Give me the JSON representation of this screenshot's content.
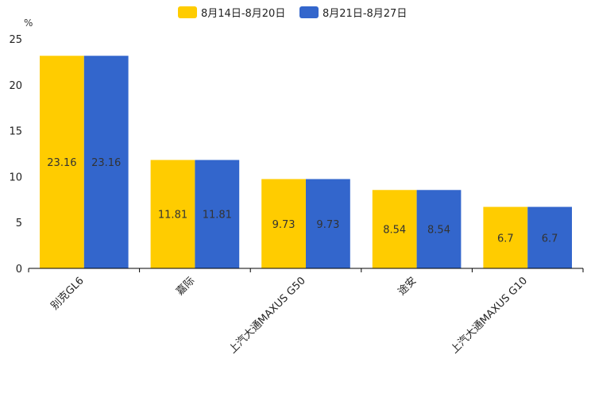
{
  "chart_data": {
    "type": "bar",
    "title": "",
    "xlabel": "",
    "ylabel": "%",
    "ylim": [
      0,
      25
    ],
    "yticks": [
      0,
      5,
      10,
      15,
      20,
      25
    ],
    "grid": false,
    "legend_position": "top-center",
    "categories": [
      "别克GL6",
      "嘉际",
      "上汽大通MAXUS G50",
      "途安",
      "上汽大通MAXUS G10"
    ],
    "series": [
      {
        "name": "8月14日-8月20日",
        "color": "#FFCC00",
        "values": [
          23.16,
          11.81,
          9.73,
          8.54,
          6.7
        ]
      },
      {
        "name": "8月21日-8月27日",
        "color": "#3366CC",
        "values": [
          23.16,
          11.81,
          9.73,
          8.54,
          6.7
        ]
      }
    ]
  }
}
